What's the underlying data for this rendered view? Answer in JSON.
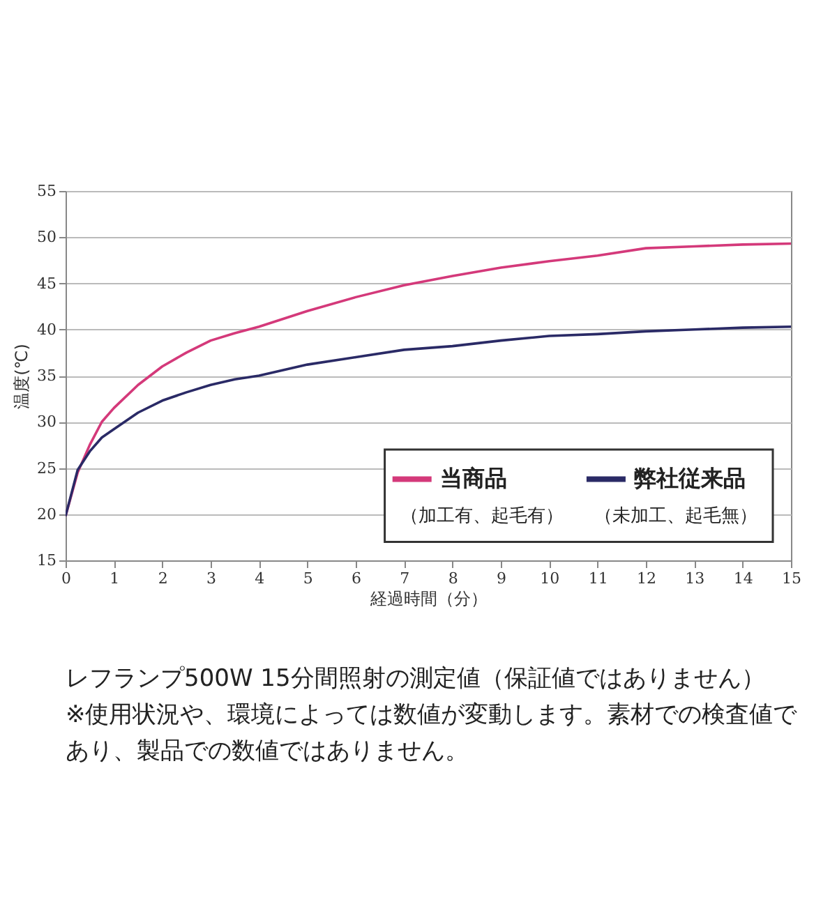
{
  "chart_data": {
    "type": "line",
    "xlabel": "経過時間（分）",
    "ylabel": "温度(℃)",
    "xlim": [
      0,
      15
    ],
    "xticks": [
      0,
      1,
      2,
      3,
      4,
      5,
      6,
      7,
      8,
      9,
      10,
      11,
      12,
      13,
      14,
      15
    ],
    "ylim": [
      15,
      55
    ],
    "yticks": [
      15,
      20,
      25,
      30,
      35,
      40,
      45,
      50,
      55
    ],
    "grid": "y",
    "legend": "bottom right",
    "line_style": "solid",
    "x": [
      0,
      0.25,
      0.5,
      0.75,
      1,
      1.5,
      2,
      2.5,
      3,
      3.5,
      4,
      5,
      6,
      7,
      8,
      9,
      10,
      11,
      12,
      13,
      14,
      15
    ],
    "series": [
      {
        "name": "当商品（加工有、起毛有）",
        "color": "#d4397a",
        "values": [
          19.8,
          24.5,
          27.5,
          30,
          31.5,
          34,
          36,
          37.5,
          38.8,
          39.6,
          40.3,
          42,
          43.5,
          44.8,
          45.8,
          46.7,
          47.4,
          48,
          48.8,
          49,
          49.2,
          49.3
        ]
      },
      {
        "name": "弊社従来品（未加工、起毛無）",
        "color": "#2a2a66",
        "values": [
          19.8,
          24.8,
          26.8,
          28.3,
          29.2,
          31,
          32.3,
          33.2,
          34,
          34.6,
          35,
          36.2,
          37,
          37.8,
          38.2,
          38.8,
          39.3,
          39.5,
          39.8,
          40,
          40.2,
          40.3
        ]
      }
    ],
    "annotations": [
      "レフランプ500W 15分間照射の測定値（保証値ではありません）",
      "※使用状況や、環境によっては数値が変動します。素材での検査値で",
      "あり、製品での数値ではありません。"
    ]
  }
}
